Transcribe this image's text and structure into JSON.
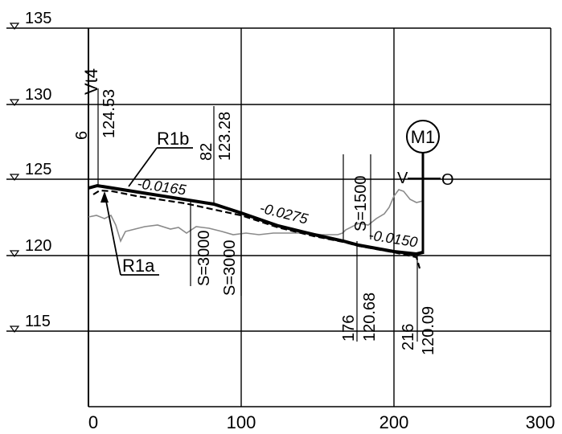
{
  "diagram": {
    "elevation_levels": [
      "135",
      "130",
      "125",
      "120",
      "115"
    ],
    "x_ticks": [
      "0",
      "100",
      "200",
      "300"
    ],
    "top_label": "Vt4",
    "labels": {
      "r1b": "R1b",
      "r1a": "R1a",
      "m1": "M1",
      "v_mark": "V",
      "o_mark": "O"
    },
    "slopes": [
      "-0.0165",
      "-0.0275",
      "-0.0150"
    ],
    "sag_labels": [
      "S=3000",
      "S=3000",
      "S=1500"
    ],
    "station_labels": [
      "6",
      "82",
      "176",
      "216"
    ],
    "elevation_labels": [
      "124.53",
      "123.28",
      "120.68",
      "120.09"
    ]
  }
}
